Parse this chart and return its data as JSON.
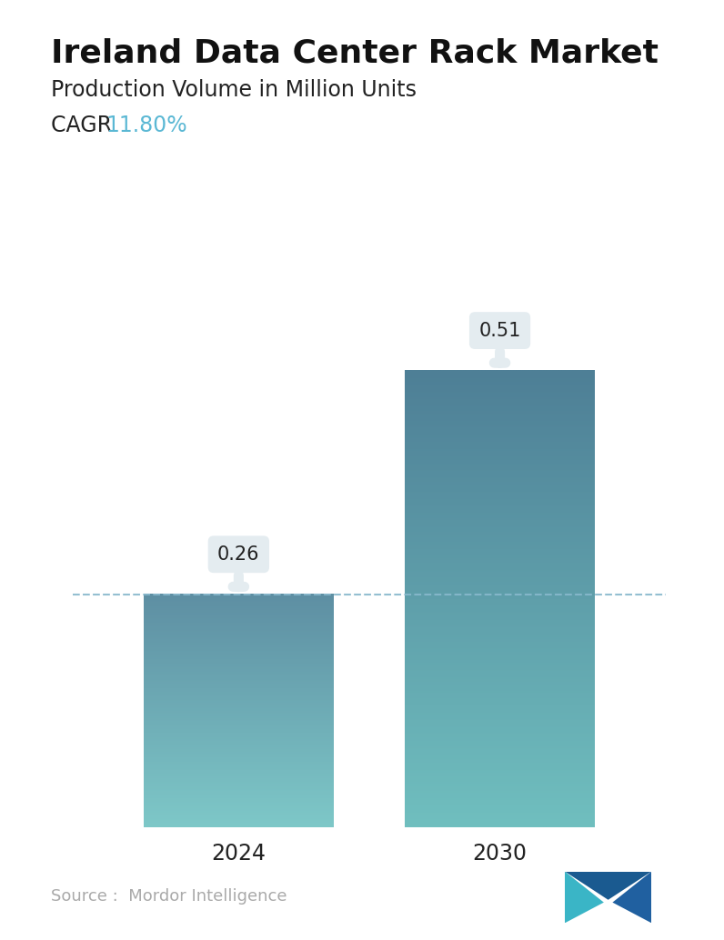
{
  "title": "Ireland Data Center Rack Market",
  "subtitle": "Production Volume in Million Units",
  "cagr_label": "CAGR ",
  "cagr_value": "11.80%",
  "cagr_color": "#5bb8d4",
  "categories": [
    "2024",
    "2030"
  ],
  "values": [
    0.26,
    0.51
  ],
  "bar_gradient_top_2024": "#5e8fa3",
  "bar_gradient_bottom_2024": "#7ec8c8",
  "bar_gradient_top_2030": "#4e7f96",
  "bar_gradient_bottom_2030": "#70bfbf",
  "dashed_line_y": 0.26,
  "dashed_line_color": "#88b8cc",
  "ylim": [
    0,
    0.63
  ],
  "source_text": "Source :  Mordor Intelligence",
  "source_color": "#aaaaaa",
  "background_color": "#ffffff",
  "annotation_bg_color": "#e4ecf0",
  "annotation_text_color": "#222222",
  "title_fontsize": 26,
  "subtitle_fontsize": 17,
  "cagr_fontsize": 17,
  "tick_fontsize": 17,
  "annotation_fontsize": 15,
  "source_fontsize": 13,
  "logo_color_left": "#3ab5c6",
  "logo_color_right": "#2060a0",
  "logo_color_mid": "#1a5a90"
}
